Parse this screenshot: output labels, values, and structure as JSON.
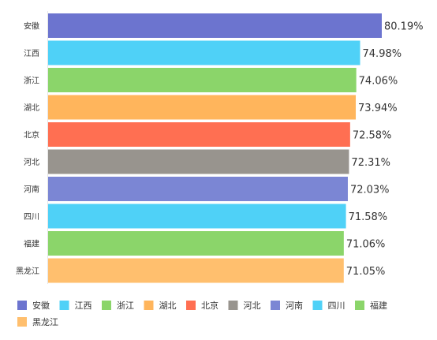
{
  "chart_data": {
    "type": "bar",
    "orientation": "horizontal",
    "title": "",
    "xlabel": "",
    "ylabel": "",
    "xlim": [
      0,
      80.19
    ],
    "value_suffix": "%",
    "grid": false,
    "legend_position": "bottom",
    "categories": [
      "安徽",
      "江西",
      "浙江",
      "湖北",
      "北京",
      "河北",
      "河南",
      "四川",
      "福建",
      "黑龙江"
    ],
    "values": [
      80.19,
      74.98,
      74.06,
      73.94,
      72.58,
      72.31,
      72.03,
      71.58,
      71.06,
      71.05
    ],
    "value_labels": [
      "80.19%",
      "74.98%",
      "74.06%",
      "73.94%",
      "72.58%",
      "72.31%",
      "72.03%",
      "71.58%",
      "71.06%",
      "71.05%"
    ],
    "colors": [
      "#6c74cf",
      "#4fd1f7",
      "#8bd56a",
      "#ffb55c",
      "#ff6f52",
      "#98948e",
      "#7b86d4",
      "#4fd1f7",
      "#8bd56a",
      "#ffbf6e"
    ],
    "legend": [
      {
        "label": "安徽",
        "color": "#6c74cf"
      },
      {
        "label": "江西",
        "color": "#4fd1f7"
      },
      {
        "label": "浙江",
        "color": "#8bd56a"
      },
      {
        "label": "湖北",
        "color": "#ffb55c"
      },
      {
        "label": "北京",
        "color": "#ff6f52"
      },
      {
        "label": "河北",
        "color": "#98948e"
      },
      {
        "label": "河南",
        "color": "#7b86d4"
      },
      {
        "label": "四川",
        "color": "#4fd1f7"
      },
      {
        "label": "福建",
        "color": "#8bd56a"
      },
      {
        "label": "黑龙江",
        "color": "#ffbf6e"
      }
    ]
  }
}
